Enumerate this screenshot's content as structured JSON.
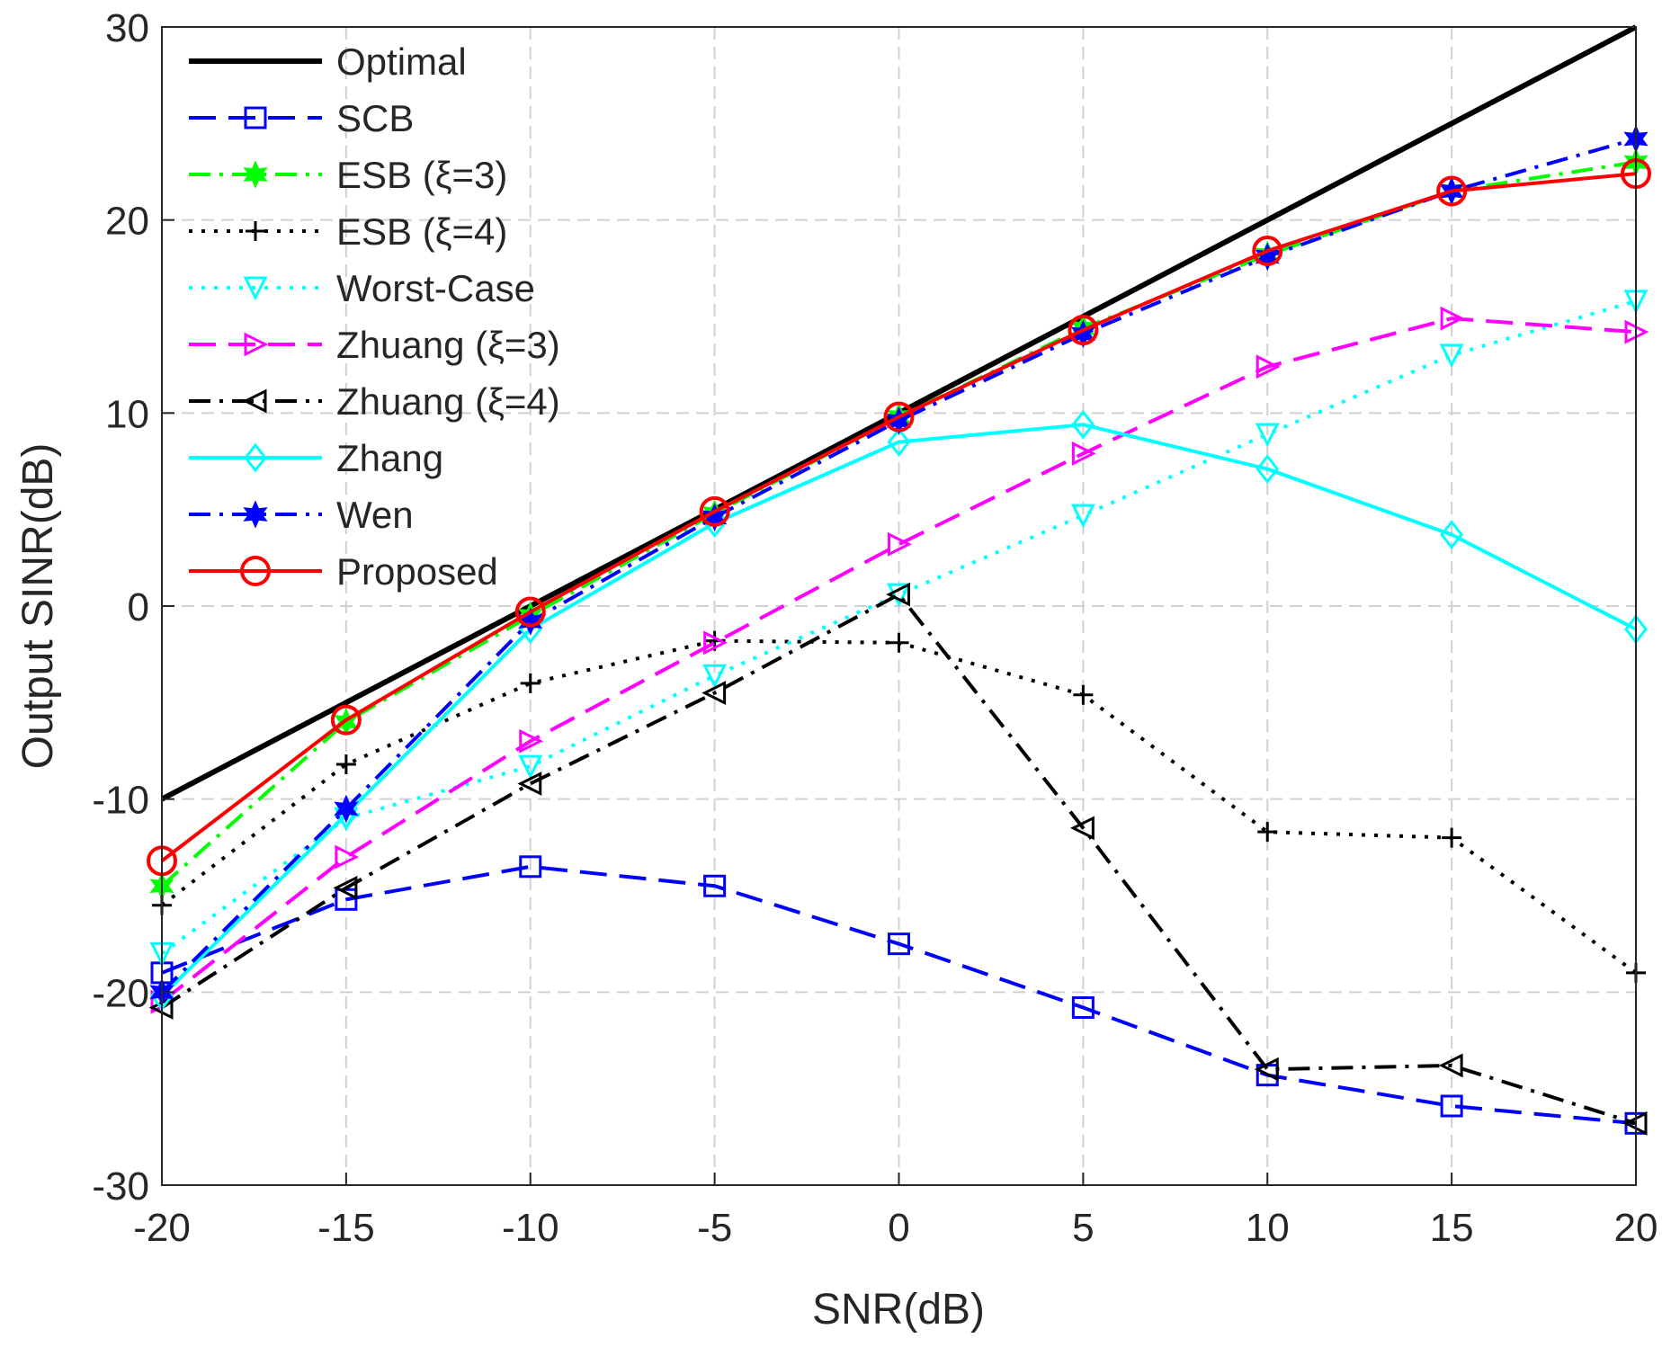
{
  "chart_data": {
    "type": "line",
    "xlabel": "SNR(dB)",
    "ylabel": "Output SINR(dB)",
    "xlim": [
      -20,
      20
    ],
    "ylim": [
      -30,
      30
    ],
    "xticks": [
      -20,
      -15,
      -10,
      -5,
      0,
      5,
      10,
      15,
      20
    ],
    "yticks": [
      -30,
      -20,
      -10,
      0,
      10,
      20,
      30
    ],
    "grid": true,
    "legend_position": "top-left",
    "x": [
      -20,
      -15,
      -10,
      -5,
      0,
      5,
      10,
      15,
      20
    ],
    "series": [
      {
        "name": "Optimal",
        "color": "#000000",
        "dash": "solid",
        "marker": "none",
        "values": [
          -10,
          -5,
          0,
          5,
          10,
          15,
          20,
          25,
          30
        ]
      },
      {
        "name": "SCB",
        "color": "#0000ff",
        "dash": "dashed",
        "marker": "square",
        "values": [
          -19,
          -15.2,
          -13.5,
          -14.5,
          -17.5,
          -20.8,
          -24.3,
          -25.9,
          -26.8
        ]
      },
      {
        "name": "ESB (ξ=3)",
        "color": "#00ff00",
        "dash": "dashdot",
        "marker": "hexagram",
        "values": [
          -14.5,
          -6,
          -0.5,
          4.8,
          9.8,
          14.4,
          18.2,
          21.5,
          23
        ]
      },
      {
        "name": "ESB (ξ=4)",
        "color": "#000000",
        "dash": "dotted",
        "marker": "plus",
        "values": [
          -15.5,
          -8.2,
          -4,
          -1.8,
          -1.9,
          -4.6,
          -11.7,
          -12,
          -19
        ]
      },
      {
        "name": "Worst-Case",
        "color": "#00ffff",
        "dash": "dotted",
        "marker": "triangle-down",
        "values": [
          -18,
          -11,
          -8.3,
          -3.6,
          0.6,
          4.7,
          8.9,
          13,
          15.8
        ]
      },
      {
        "name": "Zhuang (ξ=3)",
        "color": "#ff00ff",
        "dash": "dashed",
        "marker": "triangle-right",
        "values": [
          -20.5,
          -13,
          -7,
          -1.9,
          3.2,
          7.9,
          12.4,
          14.9,
          14.2
        ]
      },
      {
        "name": "Zhuang (ξ=4)",
        "color": "#000000",
        "dash": "dashdot",
        "marker": "triangle-left",
        "values": [
          -20.8,
          -14.6,
          -9.2,
          -4.5,
          0.6,
          -11.5,
          -24,
          -23.8,
          -26.8
        ]
      },
      {
        "name": "Zhang",
        "color": "#00ffff",
        "dash": "solid",
        "marker": "diamond",
        "values": [
          -20.2,
          -10.8,
          -1.2,
          4.3,
          8.5,
          9.4,
          7.1,
          3.7,
          -1.2
        ]
      },
      {
        "name": "Wen",
        "color": "#0000ff",
        "dash": "dashdot",
        "marker": "hexagram",
        "values": [
          -20,
          -10.5,
          -0.8,
          4.6,
          9.6,
          14.1,
          18.1,
          21.5,
          24.2
        ]
      },
      {
        "name": "Proposed",
        "color": "#ff0000",
        "dash": "solid",
        "marker": "circle",
        "values": [
          -13.2,
          -5.9,
          -0.3,
          4.9,
          9.8,
          14.3,
          18.4,
          21.5,
          22.4
        ]
      }
    ]
  }
}
